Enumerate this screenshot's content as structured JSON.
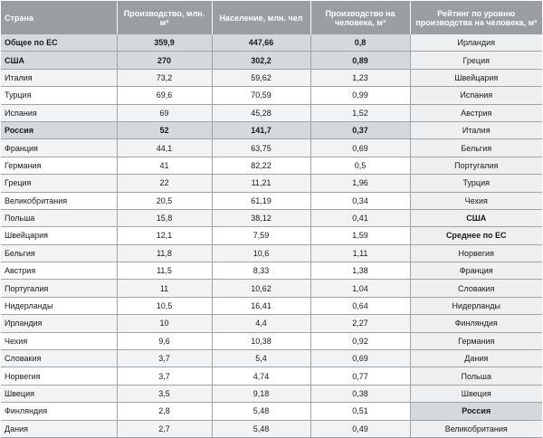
{
  "headers": {
    "country": "Страна",
    "production": "Производство, млн. м³",
    "population": "Население, млн. чел",
    "per_capita": "Производство на человека, м³",
    "rating": "Рейтинг по уровню производства на человека, м³"
  },
  "rows": [
    {
      "country": "Общее по ЕС",
      "production": "359,9",
      "population": "447,66",
      "per_capita": "0,8",
      "rating": "Ирландия",
      "highlight": true
    },
    {
      "country": "США",
      "production": "270",
      "population": "302,2",
      "per_capita": "0,89",
      "rating": "Греция",
      "highlight": true
    },
    {
      "country": "Италия",
      "production": "73,2",
      "population": "59,62",
      "per_capita": "1,23",
      "rating": "Швейцария"
    },
    {
      "country": "Турция",
      "production": "69,6",
      "population": "70,59",
      "per_capita": "0,99",
      "rating": "Испания"
    },
    {
      "country": "Испания",
      "production": "69",
      "population": "45,28",
      "per_capita": "1,52",
      "rating": "Австрия"
    },
    {
      "country": "Россия",
      "production": "52",
      "population": "141,7",
      "per_capita": "0,37",
      "rating": "Италия",
      "highlight": true
    },
    {
      "country": "Франция",
      "production": "44,1",
      "population": "63,75",
      "per_capita": "0,69",
      "rating": "Бельгия"
    },
    {
      "country": "Германия",
      "production": "41",
      "population": "82,22",
      "per_capita": "0,5",
      "rating": "Португалия"
    },
    {
      "country": "Греция",
      "production": "22",
      "population": "11,21",
      "per_capita": "1,96",
      "rating": "Турция"
    },
    {
      "country": "Великобритания",
      "production": "20,5",
      "population": "61,19",
      "per_capita": "0,34",
      "rating": "Чехия"
    },
    {
      "country": "Польша",
      "production": "15,8",
      "population": "38,12",
      "per_capita": "0,41",
      "rating": "США",
      "rating_bold": true
    },
    {
      "country": "Швейцария",
      "production": "12,1",
      "population": "7,59",
      "per_capita": "1,59",
      "rating": "Среднее по ЕС",
      "rating_bold": true
    },
    {
      "country": "Бельгия",
      "production": "11,8",
      "population": "10,6",
      "per_capita": "1,11",
      "rating": "Норвегия"
    },
    {
      "country": "Австрия",
      "production": "11,5",
      "population": "8,33",
      "per_capita": "1,38",
      "rating": "Франция"
    },
    {
      "country": "Португалия",
      "production": "11",
      "population": "10,62",
      "per_capita": "1,04",
      "rating": "Словакия"
    },
    {
      "country": "Нидерланды",
      "production": "10,5",
      "population": "16,41",
      "per_capita": "0,64",
      "rating": "Нидерланды"
    },
    {
      "country": "Ирландия",
      "production": "10",
      "population": "4,4",
      "per_capita": "2,27",
      "rating": "Финляндия"
    },
    {
      "country": "Чехия",
      "production": "9,6",
      "population": "10,38",
      "per_capita": "0,92",
      "rating": "Германия"
    },
    {
      "country": "Словакия",
      "production": "3,7",
      "population": "5,4",
      "per_capita": "0,69",
      "rating": "Дания"
    },
    {
      "country": "Норвегия",
      "production": "3,7",
      "population": "4,74",
      "per_capita": "0,77",
      "rating": "Польша"
    },
    {
      "country": "Швеция",
      "production": "3,5",
      "population": "9,18",
      "per_capita": "0,38",
      "rating": "Швеция"
    },
    {
      "country": "Финляндия",
      "production": "2,8",
      "population": "5,48",
      "per_capita": "0,51",
      "rating": "Россия",
      "rating_bold": true,
      "rating_strong": true
    },
    {
      "country": "Дания",
      "production": "2,7",
      "population": "5,48",
      "per_capita": "0,49",
      "rating": "Великобритания"
    }
  ]
}
